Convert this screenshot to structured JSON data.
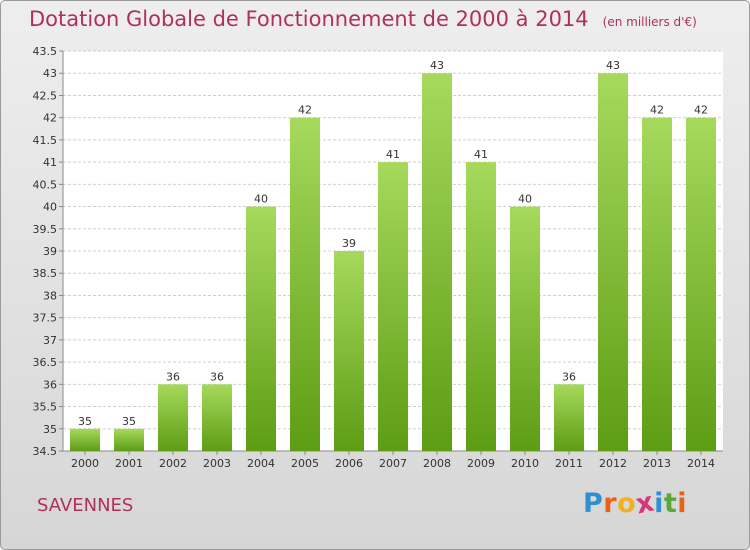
{
  "title": "Dotation Globale de Fonctionnement de 2000 à 2014",
  "unit": "(en milliers d'€)",
  "place": "SAVENNES",
  "brand": {
    "letters": [
      "P",
      "r",
      "o",
      "x",
      "i",
      "t",
      "i"
    ],
    "colors": [
      "#2f8fd2",
      "#e8621a",
      "#f3b021",
      "#d9347c",
      "#2f8fd2",
      "#5aa838",
      "#e8621a"
    ]
  },
  "colors": {
    "bar_light": "#a6d95c",
    "bar_dark": "#5d9d14",
    "accent": "#b0305a",
    "grid": "#cfcfcf",
    "axis": "#8a8a8a"
  },
  "chart_data": {
    "type": "bar",
    "categories": [
      "2000",
      "2001",
      "2002",
      "2003",
      "2004",
      "2005",
      "2006",
      "2007",
      "2008",
      "2009",
      "2010",
      "2011",
      "2012",
      "2013",
      "2014"
    ],
    "values": [
      35,
      35,
      36,
      36,
      40,
      42,
      39,
      41,
      43,
      41,
      40,
      36,
      43,
      42,
      42
    ],
    "data_labels": [
      "35",
      "35",
      "36",
      "36",
      "40",
      "42",
      "39",
      "41",
      "43",
      "41",
      "40",
      "36",
      "43",
      "42",
      "42"
    ],
    "ylim": [
      34.5,
      43.5
    ],
    "yticks": [
      "34.5",
      "35",
      "35.5",
      "36",
      "36.5",
      "37",
      "37.5",
      "38",
      "38.5",
      "39",
      "39.5",
      "40",
      "40.5",
      "41",
      "41.5",
      "42",
      "42.5",
      "43",
      "43.5"
    ],
    "grid": true,
    "xlabel": "",
    "ylabel": ""
  }
}
